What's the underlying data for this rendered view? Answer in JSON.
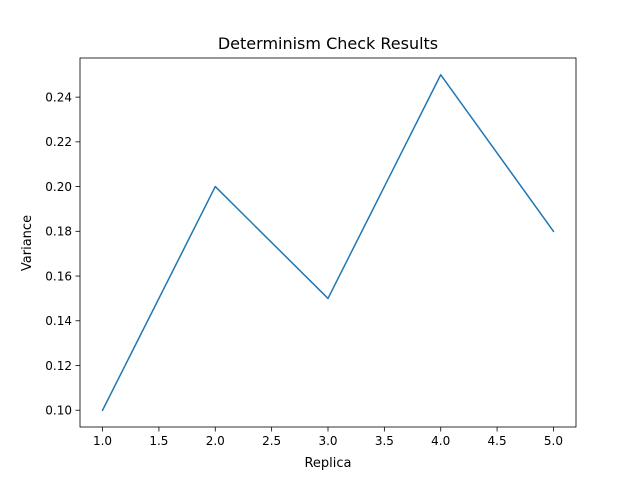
{
  "chart_data": {
    "type": "line",
    "title": "Determinism Check Results",
    "xlabel": "Replica",
    "ylabel": "Variance",
    "xlim": [
      0.8,
      5.2
    ],
    "ylim": [
      0.0925,
      0.2575
    ],
    "xticks": [
      1.0,
      1.5,
      2.0,
      2.5,
      3.0,
      3.5,
      4.0,
      4.5,
      5.0
    ],
    "xtick_labels": [
      "1.0",
      "1.5",
      "2.0",
      "2.5",
      "3.0",
      "3.5",
      "4.0",
      "4.5",
      "5.0"
    ],
    "yticks": [
      0.1,
      0.12,
      0.14,
      0.16,
      0.18,
      0.2,
      0.22,
      0.24
    ],
    "ytick_labels": [
      "0.10",
      "0.12",
      "0.14",
      "0.16",
      "0.18",
      "0.20",
      "0.22",
      "0.24"
    ],
    "grid": false,
    "legend": null,
    "series": [
      {
        "color": "#1f77b4",
        "x": [
          1,
          2,
          3,
          4,
          5
        ],
        "y": [
          0.1,
          0.2,
          0.15,
          0.25,
          0.18
        ]
      }
    ]
  }
}
